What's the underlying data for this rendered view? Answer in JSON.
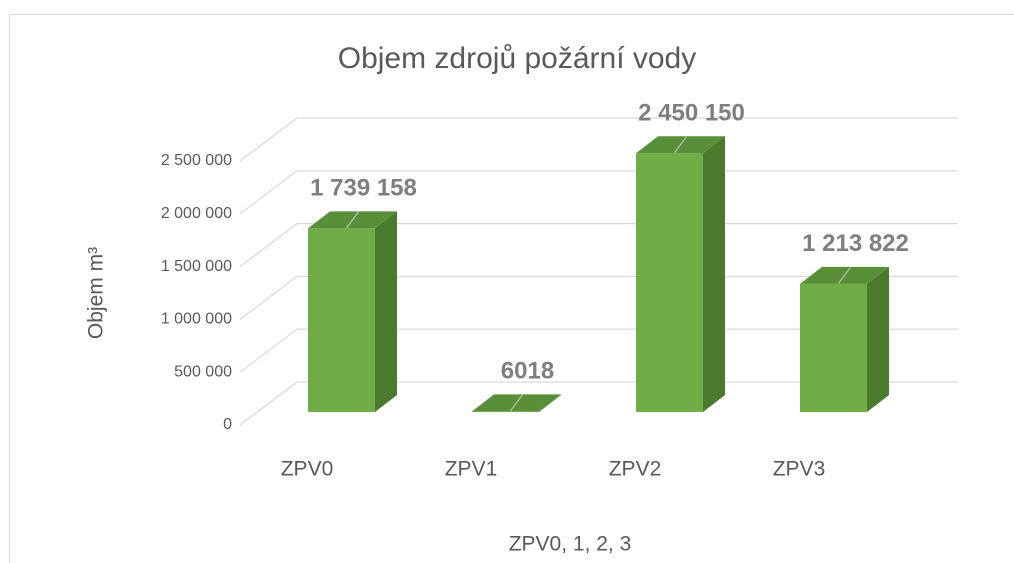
{
  "chart_data": {
    "type": "bar3d",
    "title": "Objem zdrojů požární vody",
    "x_label": "ZPV0, 1, 2, 3",
    "y_label": "Objem m³",
    "categories": [
      "ZPV0",
      "ZPV1",
      "ZPV2",
      "ZPV3"
    ],
    "values": [
      1739158,
      6018,
      2450150,
      1213822
    ],
    "value_labels": [
      "1 739 158",
      "6018",
      "2 450 150",
      "1 213 822"
    ],
    "color": "#70ad47",
    "ylim": [
      0,
      2500000
    ],
    "yticks": [
      0,
      {
        "value": 500000,
        "label": "500 000"
      },
      {
        "value": 1000000,
        "label": "1 000 000"
      },
      {
        "value": 1500000,
        "label": "1 500 000"
      },
      {
        "value": 2000000,
        "label": "2 000 000"
      },
      {
        "value": 2500000,
        "label": "2 500 000"
      }
    ],
    "grid": true
  }
}
